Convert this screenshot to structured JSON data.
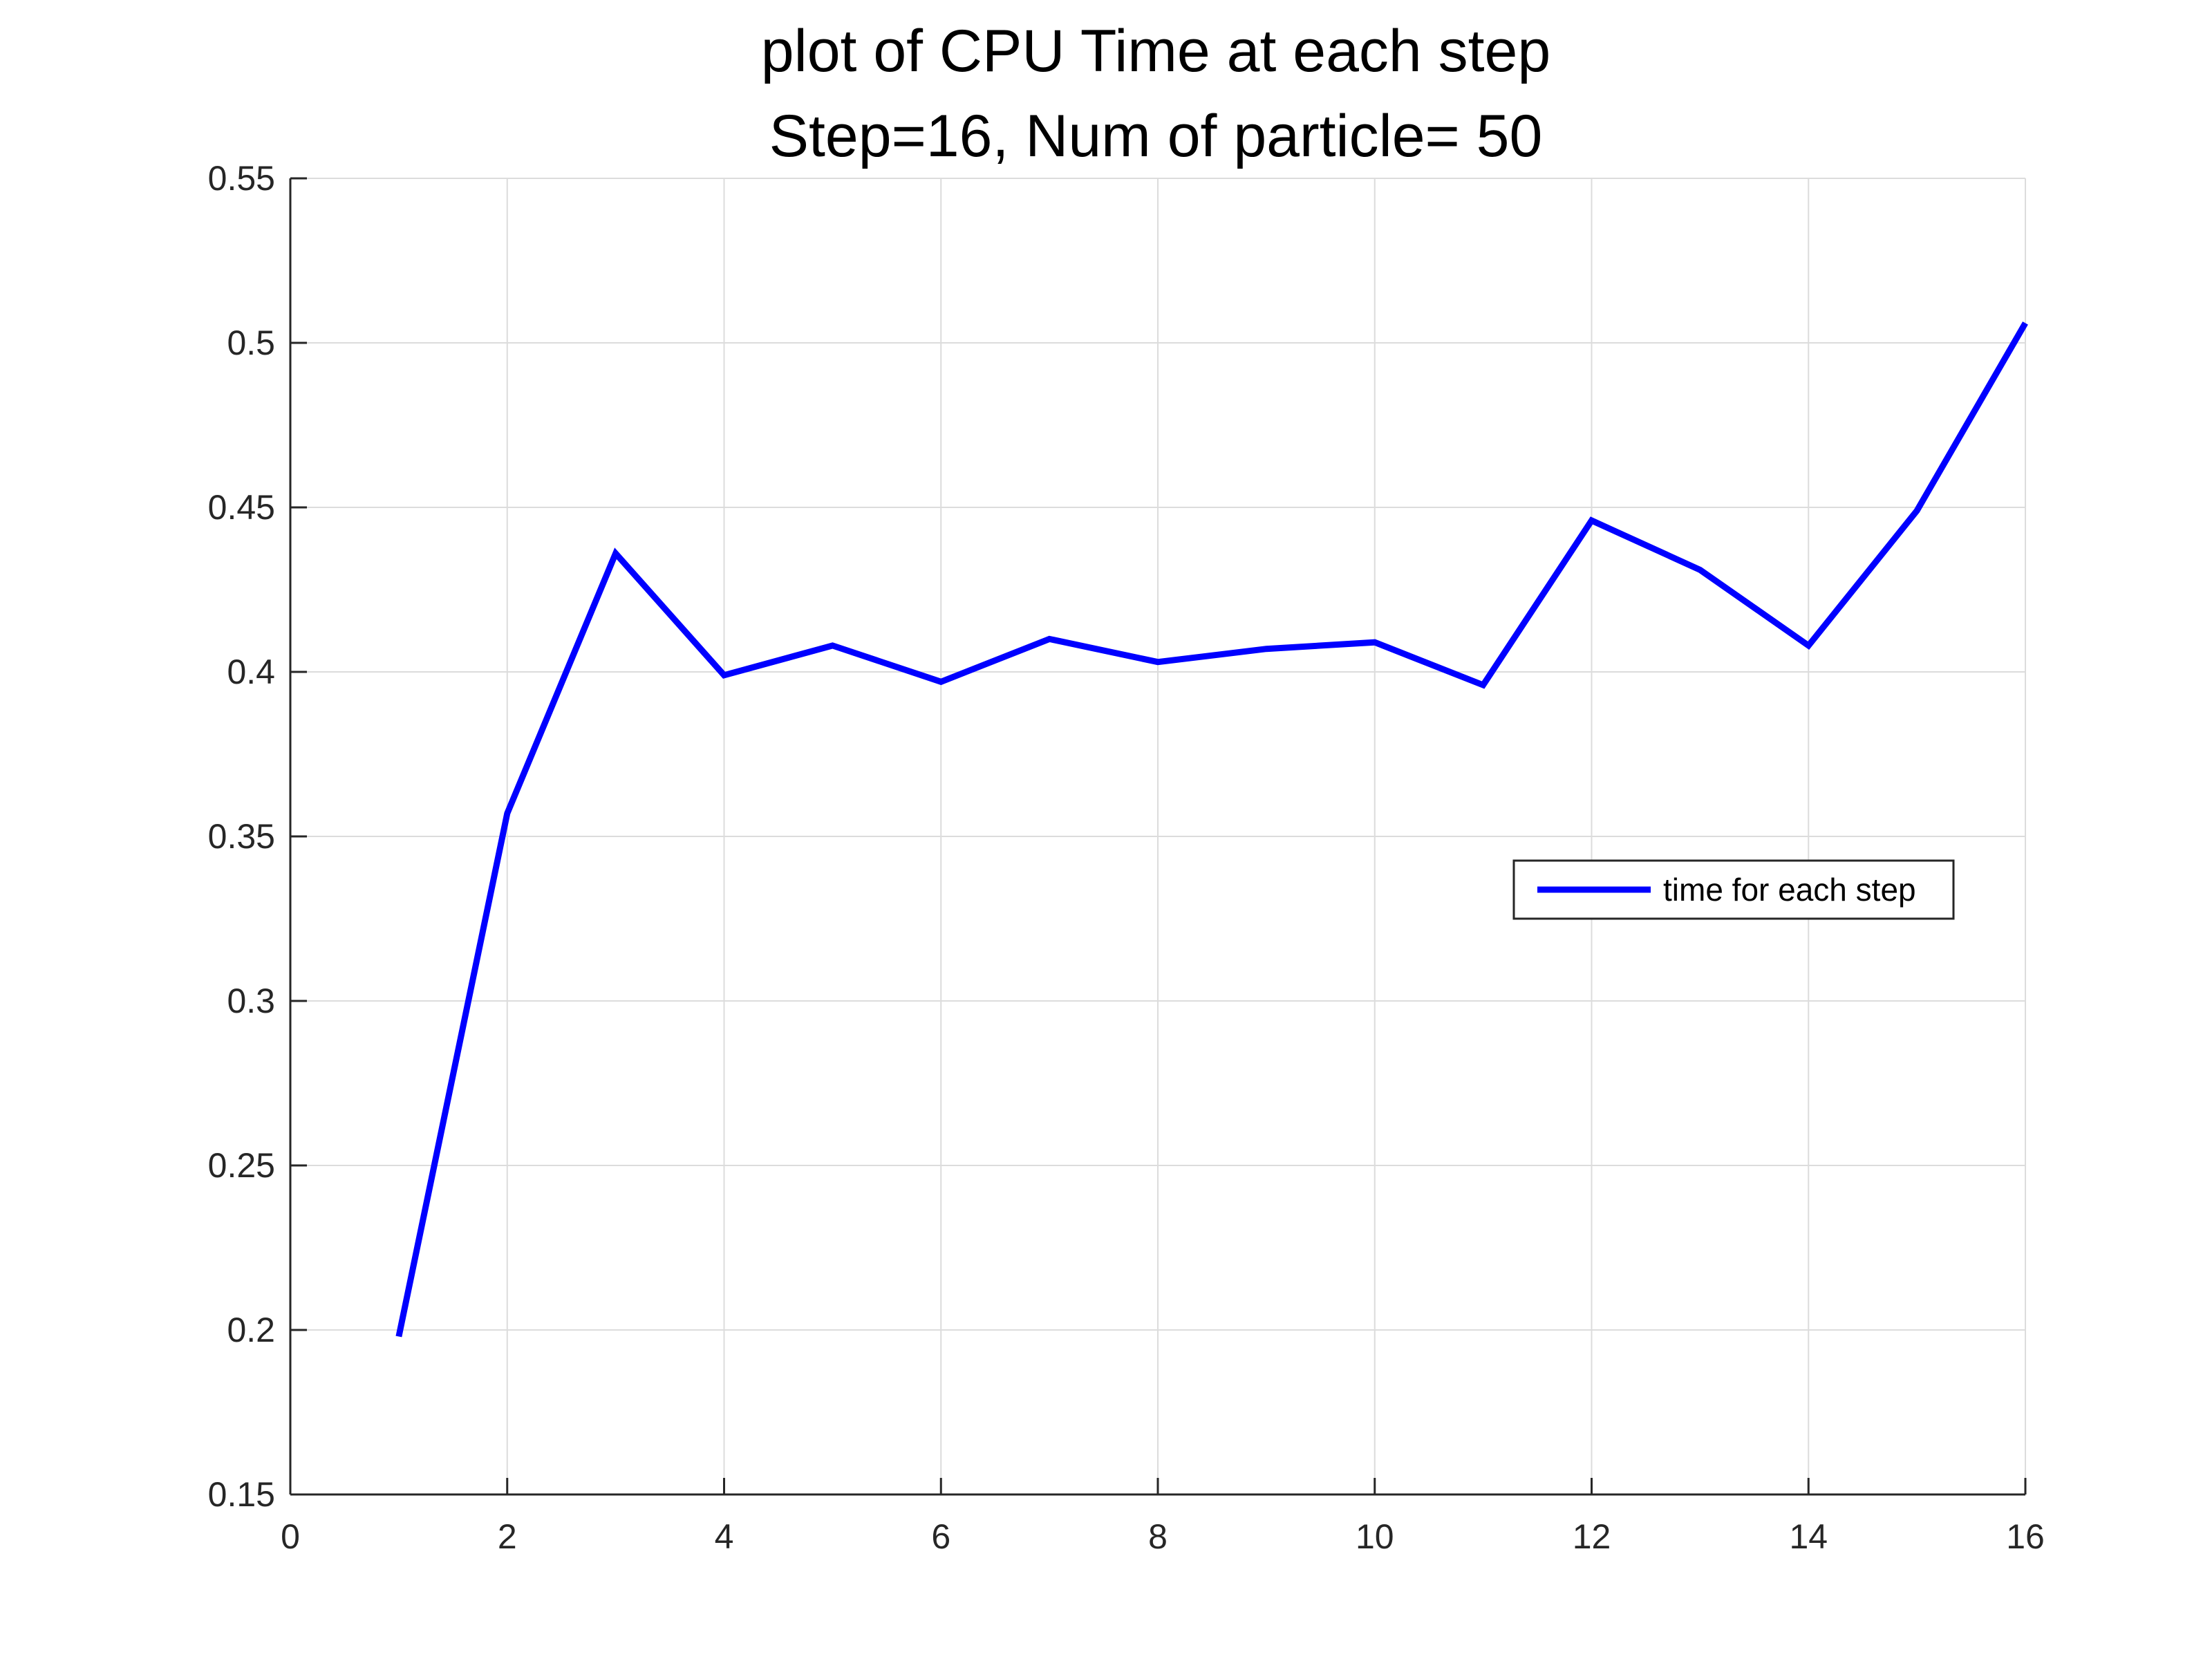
{
  "chart_data": {
    "type": "line",
    "title": "plot of CPU Time at each step",
    "subtitle": "Step=16, Num of particle= 50",
    "xlabel": "",
    "ylabel": "",
    "xlim": [
      0,
      16
    ],
    "ylim": [
      0.15,
      0.55
    ],
    "x_ticks": [
      0,
      2,
      4,
      6,
      8,
      10,
      12,
      14,
      16
    ],
    "x_tick_labels": [
      "0",
      "2",
      "4",
      "6",
      "8",
      "10",
      "12",
      "14",
      "16"
    ],
    "y_ticks": [
      0.15,
      0.2,
      0.25,
      0.3,
      0.35,
      0.4,
      0.45,
      0.5,
      0.55
    ],
    "y_tick_labels": [
      "0.15",
      "0.2",
      "0.25",
      "0.3",
      "0.35",
      "0.4",
      "0.45",
      "0.5",
      "0.55"
    ],
    "grid": true,
    "legend_position": "right",
    "series": [
      {
        "name": "time for each step",
        "color": "#0000ff",
        "x": [
          1,
          2,
          3,
          4,
          5,
          6,
          7,
          8,
          9,
          10,
          11,
          12,
          13,
          14,
          15,
          16
        ],
        "y": [
          0.198,
          0.357,
          0.436,
          0.399,
          0.408,
          0.397,
          0.41,
          0.403,
          0.407,
          0.409,
          0.396,
          0.446,
          0.431,
          0.408,
          0.449,
          0.506
        ]
      }
    ]
  }
}
